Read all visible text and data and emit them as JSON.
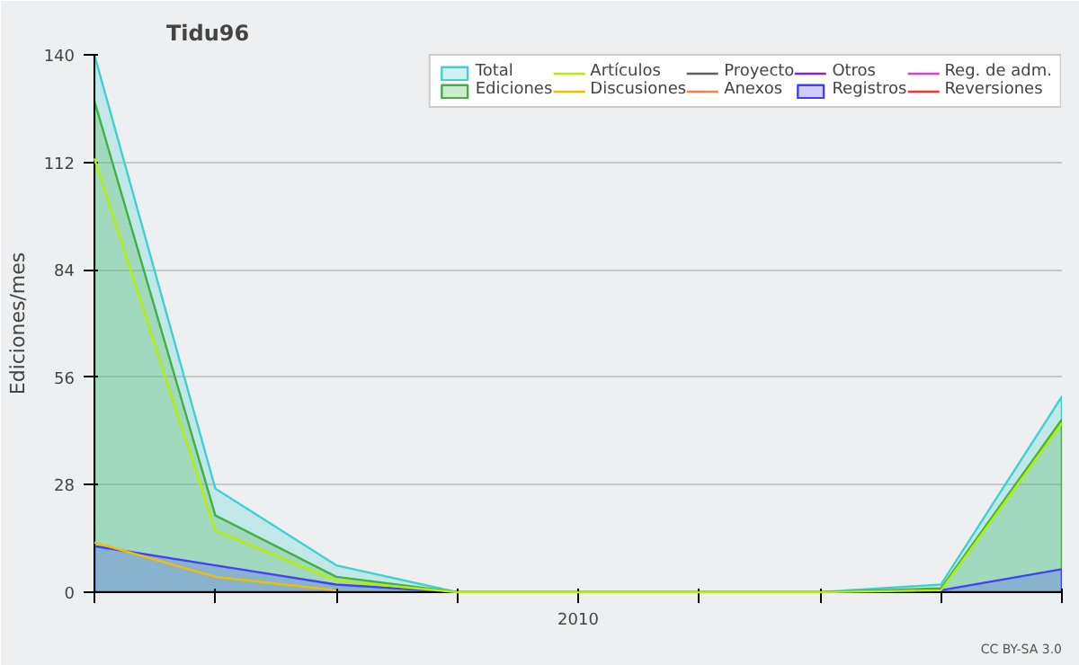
{
  "chart_data": {
    "type": "line",
    "title": "Tidu96",
    "ylabel": "Ediciones/mes",
    "categories": [
      null,
      null,
      null,
      null,
      "2010",
      null,
      null,
      null,
      null
    ],
    "series": [
      {
        "name": "Total",
        "type": "area",
        "color": "#40d0d0",
        "values": [
          140,
          27,
          7,
          0,
          0,
          0,
          0,
          2,
          51
        ]
      },
      {
        "name": "Ediciones",
        "type": "area",
        "color": "#40b040",
        "values": [
          128,
          20,
          4,
          0,
          0,
          0,
          0,
          1,
          45
        ]
      },
      {
        "name": "Artículos",
        "color": "#b0f000",
        "values": [
          113,
          16,
          3,
          0,
          0,
          0,
          0,
          0.5,
          44
        ]
      },
      {
        "name": "Discusiones",
        "color": "#f0c000",
        "values": [
          13,
          4,
          0.5,
          null,
          null,
          null,
          null,
          null,
          null
        ]
      },
      {
        "name": "Proyecto",
        "color": "#606060",
        "values": [
          null,
          null,
          null,
          null,
          null,
          null,
          null,
          null,
          null
        ]
      },
      {
        "name": "Anexos",
        "color": "#ff8040",
        "values": [
          null,
          null,
          null,
          null,
          null,
          null,
          null,
          null,
          null
        ]
      },
      {
        "name": "Otros",
        "color": "#8020e0",
        "values": [
          null,
          null,
          null,
          null,
          null,
          null,
          null,
          null,
          null
        ]
      },
      {
        "name": "Registros",
        "type": "area",
        "color": "#4040ff",
        "values": [
          12,
          7,
          2,
          0,
          0,
          0,
          0,
          0.5,
          6
        ]
      },
      {
        "name": "Reg. de adm.",
        "color": "#e040e0",
        "values": [
          null,
          null,
          null,
          null,
          null,
          null,
          null,
          null,
          null
        ]
      },
      {
        "name": "Reversiones",
        "color": "#ff3030",
        "values": [
          null,
          null,
          null,
          null,
          null,
          null,
          null,
          null,
          null
        ]
      }
    ],
    "ylim": [
      0,
      140
    ],
    "yticks": [
      0,
      28,
      56,
      84,
      112,
      140
    ],
    "grid": "y",
    "legend": "top right",
    "annotations": [
      "CC BY-SA 3.0"
    ]
  }
}
